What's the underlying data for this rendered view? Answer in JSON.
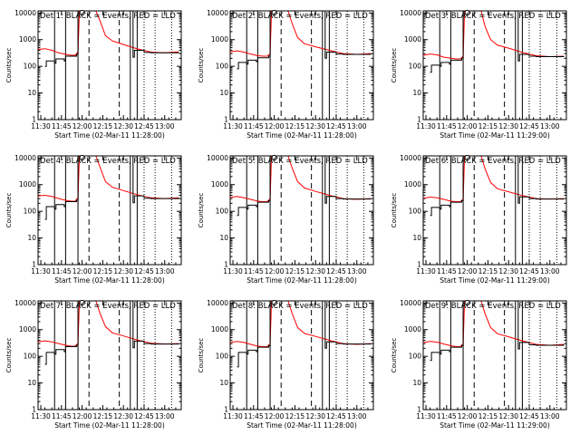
{
  "chart_data": [
    {
      "type": "line",
      "title": "Det 1: BLACK = Events, RED = LLD",
      "xlabel": "Start Time (02-Mar-11 11:28:00)",
      "ylabel": "Counts/sec",
      "x_ticks": [
        "11:30",
        "11:45",
        "12:00",
        "12:15",
        "12:30",
        "12:45",
        "13:00"
      ],
      "y_ticks": [
        "1",
        "10",
        "100",
        "1000",
        "10000"
      ],
      "yscale": "log",
      "xlim": [
        "11:28",
        "13:12"
      ],
      "ylim": [
        1,
        12000
      ],
      "legend": "BLACK = Events, RED = LLD",
      "series": [
        {
          "color": "#ff0000",
          "x": [
            "11:28",
            "11:33",
            "11:38",
            "11:43",
            "11:48",
            "11:52",
            "11:55",
            "11:57",
            "11:58",
            "12:10",
            "12:13",
            "12:17",
            "12:22",
            "12:30",
            "12:40",
            "12:50",
            "13:00",
            "13:10"
          ],
          "values": [
            430,
            460,
            400,
            320,
            280,
            260,
            260,
            350,
            12000,
            12000,
            5000,
            1400,
            900,
            660,
            450,
            340,
            320,
            350
          ]
        },
        {
          "color": "#000000",
          "x": [
            "11:33",
            "11:34",
            "11:40",
            "11:41",
            "11:47",
            "11:48",
            "11:56",
            "11:57",
            "12:37",
            "12:38",
            "12:45",
            "12:50",
            "13:00",
            "13:10"
          ],
          "values": [
            100,
            160,
            130,
            190,
            160,
            240,
            280,
            12000,
            220,
            400,
            330,
            320,
            320,
            340
          ]
        }
      ]
    },
    {
      "type": "line",
      "title": "Det 2: BLACK = Events, RED = LLD",
      "xlabel": "Start Time (02-Mar-11 11:28:00)",
      "ylabel": "Counts/sec",
      "x_ticks": [
        "11:30",
        "11:45",
        "12:00",
        "12:15",
        "12:30",
        "12:45",
        "13:00"
      ],
      "y_ticks": [
        "1",
        "10",
        "100",
        "1000",
        "10000"
      ],
      "yscale": "log",
      "xlim": [
        "11:28",
        "13:12"
      ],
      "ylim": [
        1,
        12000
      ],
      "legend": "BLACK = Events, RED = LLD",
      "series": [
        {
          "color": "#ff0000",
          "x": [
            "11:28",
            "11:33",
            "11:38",
            "11:43",
            "11:48",
            "11:52",
            "11:55",
            "11:57",
            "11:58",
            "12:10",
            "12:13",
            "12:17",
            "12:22",
            "12:30",
            "12:40",
            "12:50",
            "13:00",
            "13:10"
          ],
          "values": [
            350,
            380,
            340,
            290,
            250,
            240,
            240,
            300,
            12000,
            12000,
            4000,
            1200,
            700,
            540,
            400,
            300,
            280,
            300
          ]
        },
        {
          "color": "#000000",
          "x": [
            "11:33",
            "11:34",
            "11:40",
            "11:41",
            "11:47",
            "11:48",
            "11:56",
            "11:57",
            "12:37",
            "12:38",
            "12:45",
            "12:50",
            "13:00",
            "13:10"
          ],
          "values": [
            80,
            140,
            120,
            170,
            150,
            210,
            240,
            12000,
            200,
            340,
            290,
            280,
            280,
            300
          ]
        }
      ]
    },
    {
      "type": "line",
      "title": "Det 3: BLACK = Events, RED = LLD",
      "xlabel": "Start Time (02-Mar-11 11:29:00)",
      "ylabel": "Counts/sec",
      "x_ticks": [
        "11:30",
        "11:45",
        "12:00",
        "12:15",
        "12:30",
        "12:45",
        "13:00"
      ],
      "y_ticks": [
        "1",
        "10",
        "100",
        "1000",
        "10000"
      ],
      "yscale": "log",
      "xlim": [
        "11:28",
        "13:12"
      ],
      "ylim": [
        1,
        12000
      ],
      "legend": "BLACK = Events, RED = LLD",
      "series": [
        {
          "color": "#ff0000",
          "x": [
            "11:28",
            "11:33",
            "11:38",
            "11:43",
            "11:48",
            "11:52",
            "11:55",
            "11:57",
            "11:58",
            "12:10",
            "12:13",
            "12:17",
            "12:22",
            "12:30",
            "12:40",
            "12:50",
            "13:00",
            "13:10"
          ],
          "values": [
            260,
            290,
            270,
            220,
            200,
            190,
            190,
            240,
            12000,
            12000,
            3000,
            1000,
            620,
            480,
            330,
            250,
            230,
            240
          ]
        },
        {
          "color": "#000000",
          "x": [
            "11:33",
            "11:34",
            "11:40",
            "11:41",
            "11:47",
            "11:48",
            "11:56",
            "11:57",
            "12:37",
            "12:38",
            "12:45",
            "12:50",
            "13:00",
            "13:10"
          ],
          "values": [
            60,
            110,
            100,
            140,
            120,
            170,
            200,
            12000,
            160,
            280,
            240,
            230,
            230,
            240
          ]
        }
      ]
    },
    {
      "type": "line",
      "title": "Det 4: BLACK = Events, RED = LLD",
      "xlabel": "Start Time (02-Mar-11 11:28:00)",
      "ylabel": "Counts/sec",
      "x_ticks": [
        "11:30",
        "11:45",
        "12:00",
        "12:15",
        "12:30",
        "12:45",
        "13:00"
      ],
      "y_ticks": [
        "1",
        "10",
        "100",
        "1000",
        "10000"
      ],
      "yscale": "log",
      "xlim": [
        "11:28",
        "13:12"
      ],
      "ylim": [
        1,
        12000
      ],
      "legend": "BLACK = Events, RED = LLD",
      "series": [
        {
          "color": "#ff0000",
          "x": [
            "11:28",
            "11:33",
            "11:38",
            "11:43",
            "11:48",
            "11:52",
            "11:55",
            "11:57",
            "11:58",
            "12:10",
            "12:13",
            "12:17",
            "12:22",
            "12:30",
            "12:40",
            "12:50",
            "13:00",
            "13:10"
          ],
          "values": [
            380,
            400,
            360,
            300,
            260,
            240,
            240,
            330,
            12000,
            12000,
            4500,
            1300,
            800,
            600,
            420,
            320,
            300,
            320
          ]
        },
        {
          "color": "#000000",
          "x": [
            "11:33",
            "11:34",
            "11:40",
            "11:41",
            "11:47",
            "11:48",
            "11:56",
            "11:57",
            "12:37",
            "12:38",
            "12:45",
            "12:50",
            "13:00",
            "13:10"
          ],
          "values": [
            50,
            150,
            120,
            180,
            150,
            230,
            260,
            12000,
            210,
            380,
            310,
            300,
            300,
            320
          ]
        }
      ]
    },
    {
      "type": "line",
      "title": "Det 5: BLACK = Events, RED = LLD",
      "xlabel": "Start Time (02-Mar-11 11:28:00)",
      "ylabel": "Counts/sec",
      "x_ticks": [
        "11:30",
        "11:45",
        "12:00",
        "12:15",
        "12:30",
        "12:45",
        "13:00"
      ],
      "y_ticks": [
        "1",
        "10",
        "100",
        "1000",
        "10000"
      ],
      "yscale": "log",
      "xlim": [
        "11:28",
        "13:12"
      ],
      "ylim": [
        1,
        12000
      ],
      "legend": "BLACK = Events, RED = LLD",
      "series": [
        {
          "color": "#ff0000",
          "x": [
            "11:28",
            "11:33",
            "11:38",
            "11:43",
            "11:48",
            "11:52",
            "11:55",
            "11:57",
            "11:58",
            "12:10",
            "12:13",
            "12:17",
            "12:22",
            "12:30",
            "12:40",
            "12:50",
            "13:00",
            "13:10"
          ],
          "values": [
            330,
            360,
            320,
            280,
            240,
            230,
            230,
            300,
            12000,
            12000,
            4200,
            1300,
            750,
            560,
            400,
            300,
            280,
            300
          ]
        },
        {
          "color": "#000000",
          "x": [
            "11:33",
            "11:34",
            "11:40",
            "11:41",
            "11:47",
            "11:48",
            "11:56",
            "11:57",
            "12:37",
            "12:38",
            "12:45",
            "12:50",
            "13:00",
            "13:10"
          ],
          "values": [
            70,
            140,
            120,
            170,
            150,
            220,
            250,
            12000,
            200,
            360,
            300,
            290,
            290,
            300
          ]
        }
      ]
    },
    {
      "type": "line",
      "title": "Det 6: BLACK = Events, RED = LLD",
      "xlabel": "Start Time (02-Mar-11 11:29:00)",
      "ylabel": "Counts/sec",
      "x_ticks": [
        "11:30",
        "11:45",
        "12:00",
        "12:15",
        "12:30",
        "12:45",
        "13:00"
      ],
      "y_ticks": [
        "1",
        "10",
        "100",
        "1000",
        "10000"
      ],
      "yscale": "log",
      "xlim": [
        "11:28",
        "13:12"
      ],
      "ylim": [
        1,
        12000
      ],
      "legend": "BLACK = Events, RED = LLD",
      "series": [
        {
          "color": "#ff0000",
          "x": [
            "11:28",
            "11:33",
            "11:38",
            "11:43",
            "11:48",
            "11:52",
            "11:55",
            "11:57",
            "11:58",
            "12:10",
            "12:13",
            "12:17",
            "12:22",
            "12:30",
            "12:40",
            "12:50",
            "13:00",
            "13:10"
          ],
          "values": [
            310,
            340,
            320,
            280,
            240,
            230,
            230,
            290,
            12000,
            12000,
            3800,
            1200,
            700,
            540,
            390,
            300,
            290,
            300
          ]
        },
        {
          "color": "#000000",
          "x": [
            "11:33",
            "11:34",
            "11:40",
            "11:41",
            "11:47",
            "11:48",
            "11:56",
            "11:57",
            "12:37",
            "12:38",
            "12:45",
            "12:50",
            "13:00",
            "13:10"
          ],
          "values": [
            70,
            140,
            120,
            170,
            150,
            220,
            250,
            12000,
            200,
            350,
            300,
            290,
            290,
            300
          ]
        }
      ]
    },
    {
      "type": "line",
      "title": "Det 7: BLACK = Events, RED = LLD",
      "xlabel": "Start Time (02-Mar-11 11:28:00)",
      "ylabel": "Counts/sec",
      "x_ticks": [
        "11:30",
        "11:45",
        "12:00",
        "12:15",
        "12:30",
        "12:45",
        "13:00"
      ],
      "y_ticks": [
        "1",
        "10",
        "100",
        "1000",
        "10000"
      ],
      "yscale": "log",
      "xlim": [
        "11:28",
        "13:12"
      ],
      "ylim": [
        1,
        12000
      ],
      "legend": "BLACK = Events, RED = LLD",
      "series": [
        {
          "color": "#ff0000",
          "x": [
            "11:28",
            "11:33",
            "11:38",
            "11:43",
            "11:48",
            "11:52",
            "11:55",
            "11:57",
            "11:58",
            "12:10",
            "12:13",
            "12:17",
            "12:22",
            "12:30",
            "12:40",
            "12:50",
            "13:00",
            "13:10"
          ],
          "values": [
            350,
            380,
            350,
            300,
            260,
            240,
            240,
            310,
            12000,
            12000,
            4000,
            1300,
            760,
            580,
            410,
            310,
            290,
            300
          ]
        },
        {
          "color": "#000000",
          "x": [
            "11:33",
            "11:34",
            "11:40",
            "11:41",
            "11:47",
            "11:48",
            "11:56",
            "11:57",
            "12:37",
            "12:38",
            "12:45",
            "12:50",
            "13:00",
            "13:10"
          ],
          "values": [
            50,
            140,
            120,
            180,
            150,
            230,
            260,
            12000,
            210,
            370,
            300,
            290,
            290,
            300
          ]
        }
      ]
    },
    {
      "type": "line",
      "title": "Det 8: BLACK = Events, RED = LLD",
      "xlabel": "Start Time (02-Mar-11 11:28:00)",
      "ylabel": "Counts/sec",
      "x_ticks": [
        "11:30",
        "11:45",
        "12:00",
        "12:15",
        "12:30",
        "12:45",
        "13:00"
      ],
      "y_ticks": [
        "1",
        "10",
        "100",
        "1000",
        "10000"
      ],
      "yscale": "log",
      "xlim": [
        "11:28",
        "13:12"
      ],
      "ylim": [
        1,
        12000
      ],
      "legend": "BLACK = Events, RED = LLD",
      "series": [
        {
          "color": "#ff0000",
          "x": [
            "11:28",
            "11:33",
            "11:38",
            "11:43",
            "11:48",
            "11:52",
            "11:55",
            "11:57",
            "11:58",
            "12:10",
            "12:13",
            "12:17",
            "12:22",
            "12:30",
            "12:40",
            "12:50",
            "13:00",
            "13:10"
          ],
          "values": [
            330,
            360,
            330,
            280,
            240,
            230,
            230,
            300,
            12000,
            12000,
            4000,
            1200,
            720,
            560,
            400,
            300,
            280,
            300
          ]
        },
        {
          "color": "#000000",
          "x": [
            "11:33",
            "11:34",
            "11:40",
            "11:41",
            "11:47",
            "11:48",
            "11:56",
            "11:57",
            "12:37",
            "12:38",
            "12:45",
            "12:50",
            "13:00",
            "13:10"
          ],
          "values": [
            40,
            140,
            120,
            170,
            150,
            220,
            250,
            12000,
            200,
            350,
            300,
            290,
            290,
            300
          ]
        }
      ]
    },
    {
      "type": "line",
      "title": "Det 9: BLACK = Events, RED = LLD",
      "xlabel": "Start Time (02-Mar-11 11:29:00)",
      "ylabel": "Counts/sec",
      "x_ticks": [
        "11:30",
        "11:45",
        "12:00",
        "12:15",
        "12:30",
        "12:45",
        "13:00"
      ],
      "y_ticks": [
        "1",
        "10",
        "100",
        "1000",
        "10000"
      ],
      "yscale": "log",
      "xlim": [
        "11:28",
        "13:12"
      ],
      "ylim": [
        1,
        12000
      ],
      "legend": "BLACK = Events, RED = LLD",
      "series": [
        {
          "color": "#ff0000",
          "x": [
            "11:28",
            "11:33",
            "11:38",
            "11:43",
            "11:48",
            "11:52",
            "11:55",
            "11:57",
            "11:58",
            "12:10",
            "12:13",
            "12:17",
            "12:22",
            "12:30",
            "12:40",
            "12:50",
            "13:00",
            "13:10"
          ],
          "values": [
            330,
            360,
            340,
            290,
            250,
            230,
            230,
            300,
            12000,
            12000,
            3800,
            1200,
            700,
            540,
            380,
            280,
            260,
            280
          ]
        },
        {
          "color": "#000000",
          "x": [
            "11:33",
            "11:34",
            "11:40",
            "11:41",
            "11:47",
            "11:48",
            "11:56",
            "11:57",
            "12:37",
            "12:38",
            "12:45",
            "12:50",
            "13:00",
            "13:10"
          ],
          "values": [
            70,
            140,
            120,
            170,
            150,
            220,
            250,
            12000,
            190,
            330,
            270,
            260,
            260,
            280
          ]
        }
      ]
    }
  ],
  "vertical_markers": {
    "solid": [
      "11:40",
      "11:48",
      "11:57",
      "12:35",
      "12:40"
    ],
    "dashed": [
      "12:05",
      "12:27"
    ],
    "dotted": [
      "12:45",
      "12:53",
      "13:05"
    ]
  }
}
